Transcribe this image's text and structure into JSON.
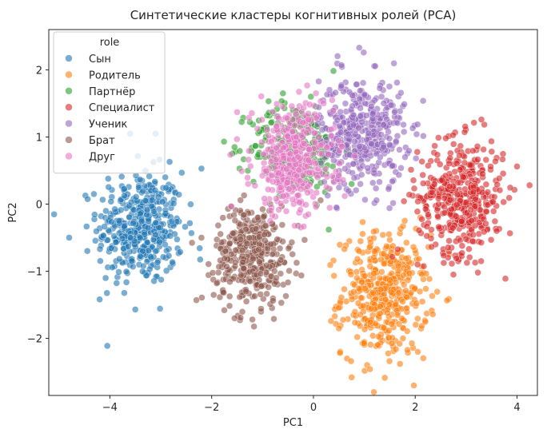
{
  "chart_data": {
    "type": "scatter",
    "title": "Синтетические кластеры когнитивных ролей (PCA)",
    "xlabel": "PC1",
    "ylabel": "PC2",
    "xlim": [
      -5.2,
      4.4
    ],
    "ylim": [
      -2.85,
      2.6
    ],
    "xticks": [
      -4,
      -2,
      0,
      2,
      4
    ],
    "yticks": [
      -2,
      -1,
      0,
      1,
      2
    ],
    "grid": false,
    "legend": {
      "title": "role",
      "placement": "top-left"
    },
    "series": [
      {
        "name": "Сын",
        "color": "#1f77b4",
        "center": [
          -3.4,
          -0.35
        ],
        "spread": [
          0.42,
          0.42
        ],
        "n": 420,
        "outliers": [
          [
            -4.8,
            -0.5
          ],
          [
            -3.5,
            -1.57
          ],
          [
            -4.2,
            -1.42
          ],
          [
            -2.2,
            0.53
          ],
          [
            -3.1,
            1.05
          ],
          [
            -3.6,
            1.05
          ]
        ]
      },
      {
        "name": "Родитель",
        "color": "#ff7f0e",
        "center": [
          1.4,
          -1.35
        ],
        "spread": [
          0.42,
          0.45
        ],
        "n": 420,
        "outliers": [
          [
            0.75,
            -2.58
          ],
          [
            0.5,
            -1.85
          ],
          [
            2.05,
            -2.2
          ],
          [
            1.7,
            -2.38
          ],
          [
            2.1,
            -0.2
          ]
        ]
      },
      {
        "name": "Партнёр",
        "color": "#2ca02c",
        "center": [
          -0.35,
          0.85
        ],
        "spread": [
          0.45,
          0.33
        ],
        "n": 260,
        "outliers": [
          [
            -0.6,
            1.65
          ],
          [
            -0.05,
            1.6
          ],
          [
            0.3,
            -0.38
          ],
          [
            0.75,
            0.3
          ],
          [
            -1.55,
            0.85
          ]
        ]
      },
      {
        "name": "Специалист",
        "color": "#d62728",
        "center": [
          2.9,
          0.1
        ],
        "spread": [
          0.42,
          0.42
        ],
        "n": 420,
        "outliers": [
          [
            3.3,
            1.26
          ],
          [
            4.0,
            0.56
          ],
          [
            2.6,
            0.98
          ],
          [
            2.75,
            -1.05
          ],
          [
            3.6,
            -0.4
          ]
        ]
      },
      {
        "name": "Ученик",
        "color": "#9467bd",
        "center": [
          0.95,
          1.05
        ],
        "spread": [
          0.42,
          0.42
        ],
        "n": 420,
        "outliers": [
          [
            0.9,
            2.33
          ],
          [
            0.55,
            2.07
          ],
          [
            1.95,
            1.13
          ],
          [
            1.8,
            0.7
          ]
        ]
      },
      {
        "name": "Брат",
        "color": "#8c564b",
        "center": [
          -1.2,
          -0.75
        ],
        "spread": [
          0.37,
          0.37
        ],
        "n": 380,
        "outliers": [
          [
            -2.3,
            -1.43
          ],
          [
            -1.55,
            -1.7
          ],
          [
            -1.2,
            -1.72
          ],
          [
            -2.2,
            -0.5
          ],
          [
            -0.85,
            0.0
          ]
        ]
      },
      {
        "name": "Друг",
        "color": "#e377c2",
        "center": [
          -0.4,
          0.65
        ],
        "spread": [
          0.4,
          0.4
        ],
        "n": 420,
        "outliers": [
          [
            -1.5,
            1.37
          ],
          [
            0.05,
            1.65
          ],
          [
            -0.85,
            -0.25
          ],
          [
            0.2,
            1.5
          ]
        ]
      }
    ]
  }
}
